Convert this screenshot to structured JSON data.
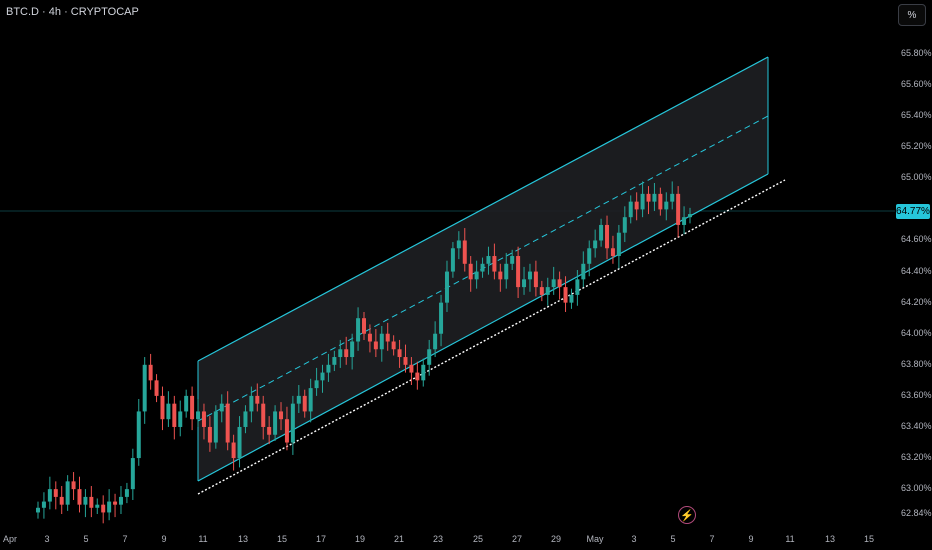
{
  "header": {
    "symbol_title": "BTC.D · 4h · CRYPTOCAP",
    "scale_button": "%"
  },
  "current_price_label": "64.77%",
  "icons": {
    "events": "lightning-bolt-icon"
  },
  "colors": {
    "up": "#26a69a",
    "down": "#ef5350",
    "channel": "#26c6da",
    "support": "#ffffff"
  },
  "chart_data": {
    "type": "candlestick",
    "title": "BTC.D · 4h · CRYPTOCAP",
    "y_ticks": [
      "65.80%",
      "65.60%",
      "65.40%",
      "65.20%",
      "65.00%",
      "64.60%",
      "64.40%",
      "64.20%",
      "64.00%",
      "63.80%",
      "63.60%",
      "63.40%",
      "63.20%",
      "63.00%",
      "62.84%"
    ],
    "y_tick_values": [
      65.8,
      65.6,
      65.4,
      65.2,
      65.0,
      64.6,
      64.4,
      64.2,
      64.0,
      63.8,
      63.6,
      63.4,
      63.2,
      63.0,
      62.84
    ],
    "x_ticks": [
      "Apr",
      "3",
      "5",
      "7",
      "9",
      "11",
      "13",
      "15",
      "17",
      "19",
      "21",
      "23",
      "25",
      "27",
      "29",
      "May",
      "3",
      "5",
      "7",
      "9",
      "11",
      "13",
      "15"
    ],
    "ylim": [
      62.84,
      65.85
    ],
    "last_price": 64.77,
    "series_close": [
      62.88,
      62.92,
      63.0,
      62.95,
      62.9,
      63.05,
      63.0,
      62.9,
      62.95,
      62.88,
      62.9,
      62.85,
      62.92,
      62.9,
      62.95,
      63.0,
      63.2,
      63.5,
      63.8,
      63.7,
      63.6,
      63.45,
      63.55,
      63.4,
      63.5,
      63.6,
      63.45,
      63.5,
      63.4,
      63.3,
      63.5,
      63.55,
      63.3,
      63.2,
      63.4,
      63.5,
      63.6,
      63.55,
      63.4,
      63.35,
      63.5,
      63.45,
      63.3,
      63.55,
      63.6,
      63.5,
      63.65,
      63.7,
      63.75,
      63.8,
      63.85,
      63.9,
      63.85,
      63.95,
      64.1,
      64.0,
      63.95,
      63.9,
      64.0,
      63.95,
      63.9,
      63.85,
      63.8,
      63.75,
      63.7,
      63.8,
      63.9,
      64.0,
      64.2,
      64.4,
      64.55,
      64.6,
      64.45,
      64.35,
      64.4,
      64.45,
      64.5,
      64.4,
      64.35,
      64.45,
      64.5,
      64.3,
      64.35,
      64.4,
      64.3,
      64.25,
      64.3,
      64.35,
      64.3,
      64.2,
      64.25,
      64.35,
      64.45,
      64.55,
      64.6,
      64.7,
      64.55,
      64.5,
      64.65,
      64.75,
      64.85,
      64.8,
      64.9,
      64.85,
      64.9,
      64.8,
      64.85,
      64.9,
      64.7,
      64.75,
      64.77
    ]
  }
}
